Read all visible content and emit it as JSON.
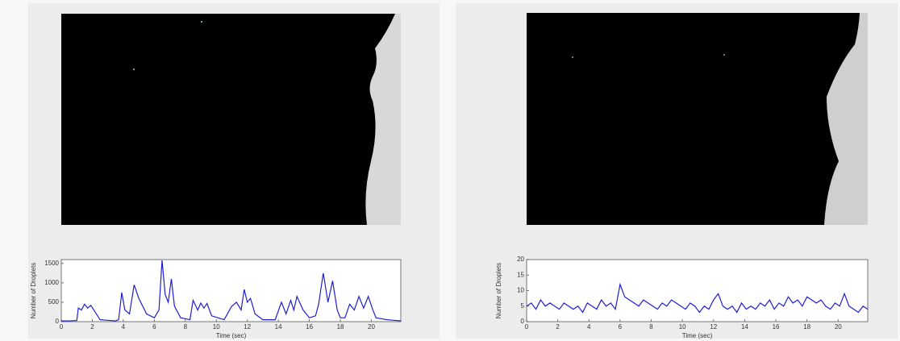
{
  "chart_data": [
    {
      "type": "line",
      "xlabel": "Time (sec)",
      "ylabel": "Number of Droplets",
      "xlim": [
        0,
        21.9
      ],
      "ylim": [
        0,
        1600
      ],
      "xticks": [
        0,
        2,
        4,
        6,
        8,
        10,
        12,
        14,
        16,
        18,
        20
      ],
      "yticks": [
        0,
        500,
        1000,
        1500
      ],
      "x": [
        0,
        0.5,
        1.0,
        1.1,
        1.3,
        1.5,
        1.7,
        1.9,
        2.1,
        2.5,
        3.5,
        3.7,
        3.9,
        4.1,
        4.4,
        4.7,
        5.0,
        5.5,
        6.0,
        6.3,
        6.5,
        6.7,
        6.9,
        7.1,
        7.3,
        7.7,
        8.3,
        8.5,
        8.8,
        9.0,
        9.2,
        9.4,
        9.7,
        10.5,
        11.0,
        11.3,
        11.6,
        11.8,
        12.0,
        12.2,
        12.5,
        13.0,
        13.8,
        14.2,
        14.5,
        14.8,
        15.0,
        15.2,
        15.6,
        16.0,
        16.4,
        16.6,
        16.9,
        17.2,
        17.5,
        17.8,
        18.0,
        18.3,
        18.6,
        18.9,
        19.2,
        19.5,
        19.8,
        20.1,
        20.3,
        21.0,
        21.9
      ],
      "series": [
        {
          "color": "#1f1fd0",
          "values": [
            20,
            20,
            30,
            350,
            300,
            450,
            350,
            420,
            300,
            50,
            20,
            50,
            750,
            300,
            200,
            950,
            600,
            200,
            100,
            300,
            1580,
            700,
            500,
            1100,
            400,
            100,
            50,
            550,
            300,
            480,
            350,
            470,
            150,
            50,
            400,
            500,
            300,
            830,
            500,
            600,
            200,
            50,
            50,
            500,
            200,
            550,
            300,
            650,
            300,
            100,
            150,
            450,
            1250,
            500,
            1050,
            300,
            100,
            100,
            450,
            300,
            650,
            350,
            650,
            300,
            100,
            50,
            20
          ]
        }
      ]
    },
    {
      "type": "line",
      "xlabel": "Time (sec)",
      "ylabel": "Number of Droplets",
      "xlim": [
        0,
        21.9
      ],
      "ylim": [
        0,
        20
      ],
      "xticks": [
        0,
        2,
        4,
        6,
        8,
        10,
        12,
        14,
        16,
        18,
        20
      ],
      "yticks": [
        0,
        5,
        10,
        15,
        20
      ],
      "x": [
        0,
        0.3,
        0.6,
        0.9,
        1.2,
        1.5,
        1.8,
        2.1,
        2.4,
        2.7,
        3.0,
        3.3,
        3.6,
        3.9,
        4.2,
        4.5,
        4.8,
        5.1,
        5.4,
        5.7,
        6.0,
        6.3,
        6.6,
        6.9,
        7.2,
        7.5,
        7.8,
        8.1,
        8.4,
        8.7,
        9.0,
        9.3,
        9.6,
        9.9,
        10.2,
        10.5,
        10.8,
        11.1,
        11.4,
        11.7,
        12.0,
        12.3,
        12.6,
        12.9,
        13.2,
        13.5,
        13.8,
        14.1,
        14.4,
        14.7,
        15.0,
        15.3,
        15.6,
        15.9,
        16.2,
        16.5,
        16.8,
        17.1,
        17.4,
        17.7,
        18.0,
        18.3,
        18.6,
        18.9,
        19.2,
        19.5,
        19.8,
        20.1,
        20.4,
        20.7,
        21.0,
        21.3,
        21.6,
        21.9
      ],
      "series": [
        {
          "color": "#1f1fd0",
          "values": [
            5,
            6,
            4,
            7,
            5,
            6,
            5,
            4,
            6,
            5,
            4,
            5,
            3,
            6,
            5,
            4,
            7,
            5,
            6,
            4,
            12,
            8,
            7,
            6,
            5,
            7,
            6,
            5,
            4,
            6,
            5,
            7,
            6,
            5,
            4,
            6,
            5,
            3,
            5,
            4,
            7,
            9,
            5,
            4,
            5,
            3,
            6,
            4,
            5,
            4,
            6,
            5,
            7,
            4,
            6,
            5,
            8,
            6,
            7,
            5,
            8,
            7,
            6,
            7,
            5,
            4,
            6,
            5,
            9,
            5,
            4,
            3,
            5,
            4
          ]
        }
      ]
    }
  ]
}
